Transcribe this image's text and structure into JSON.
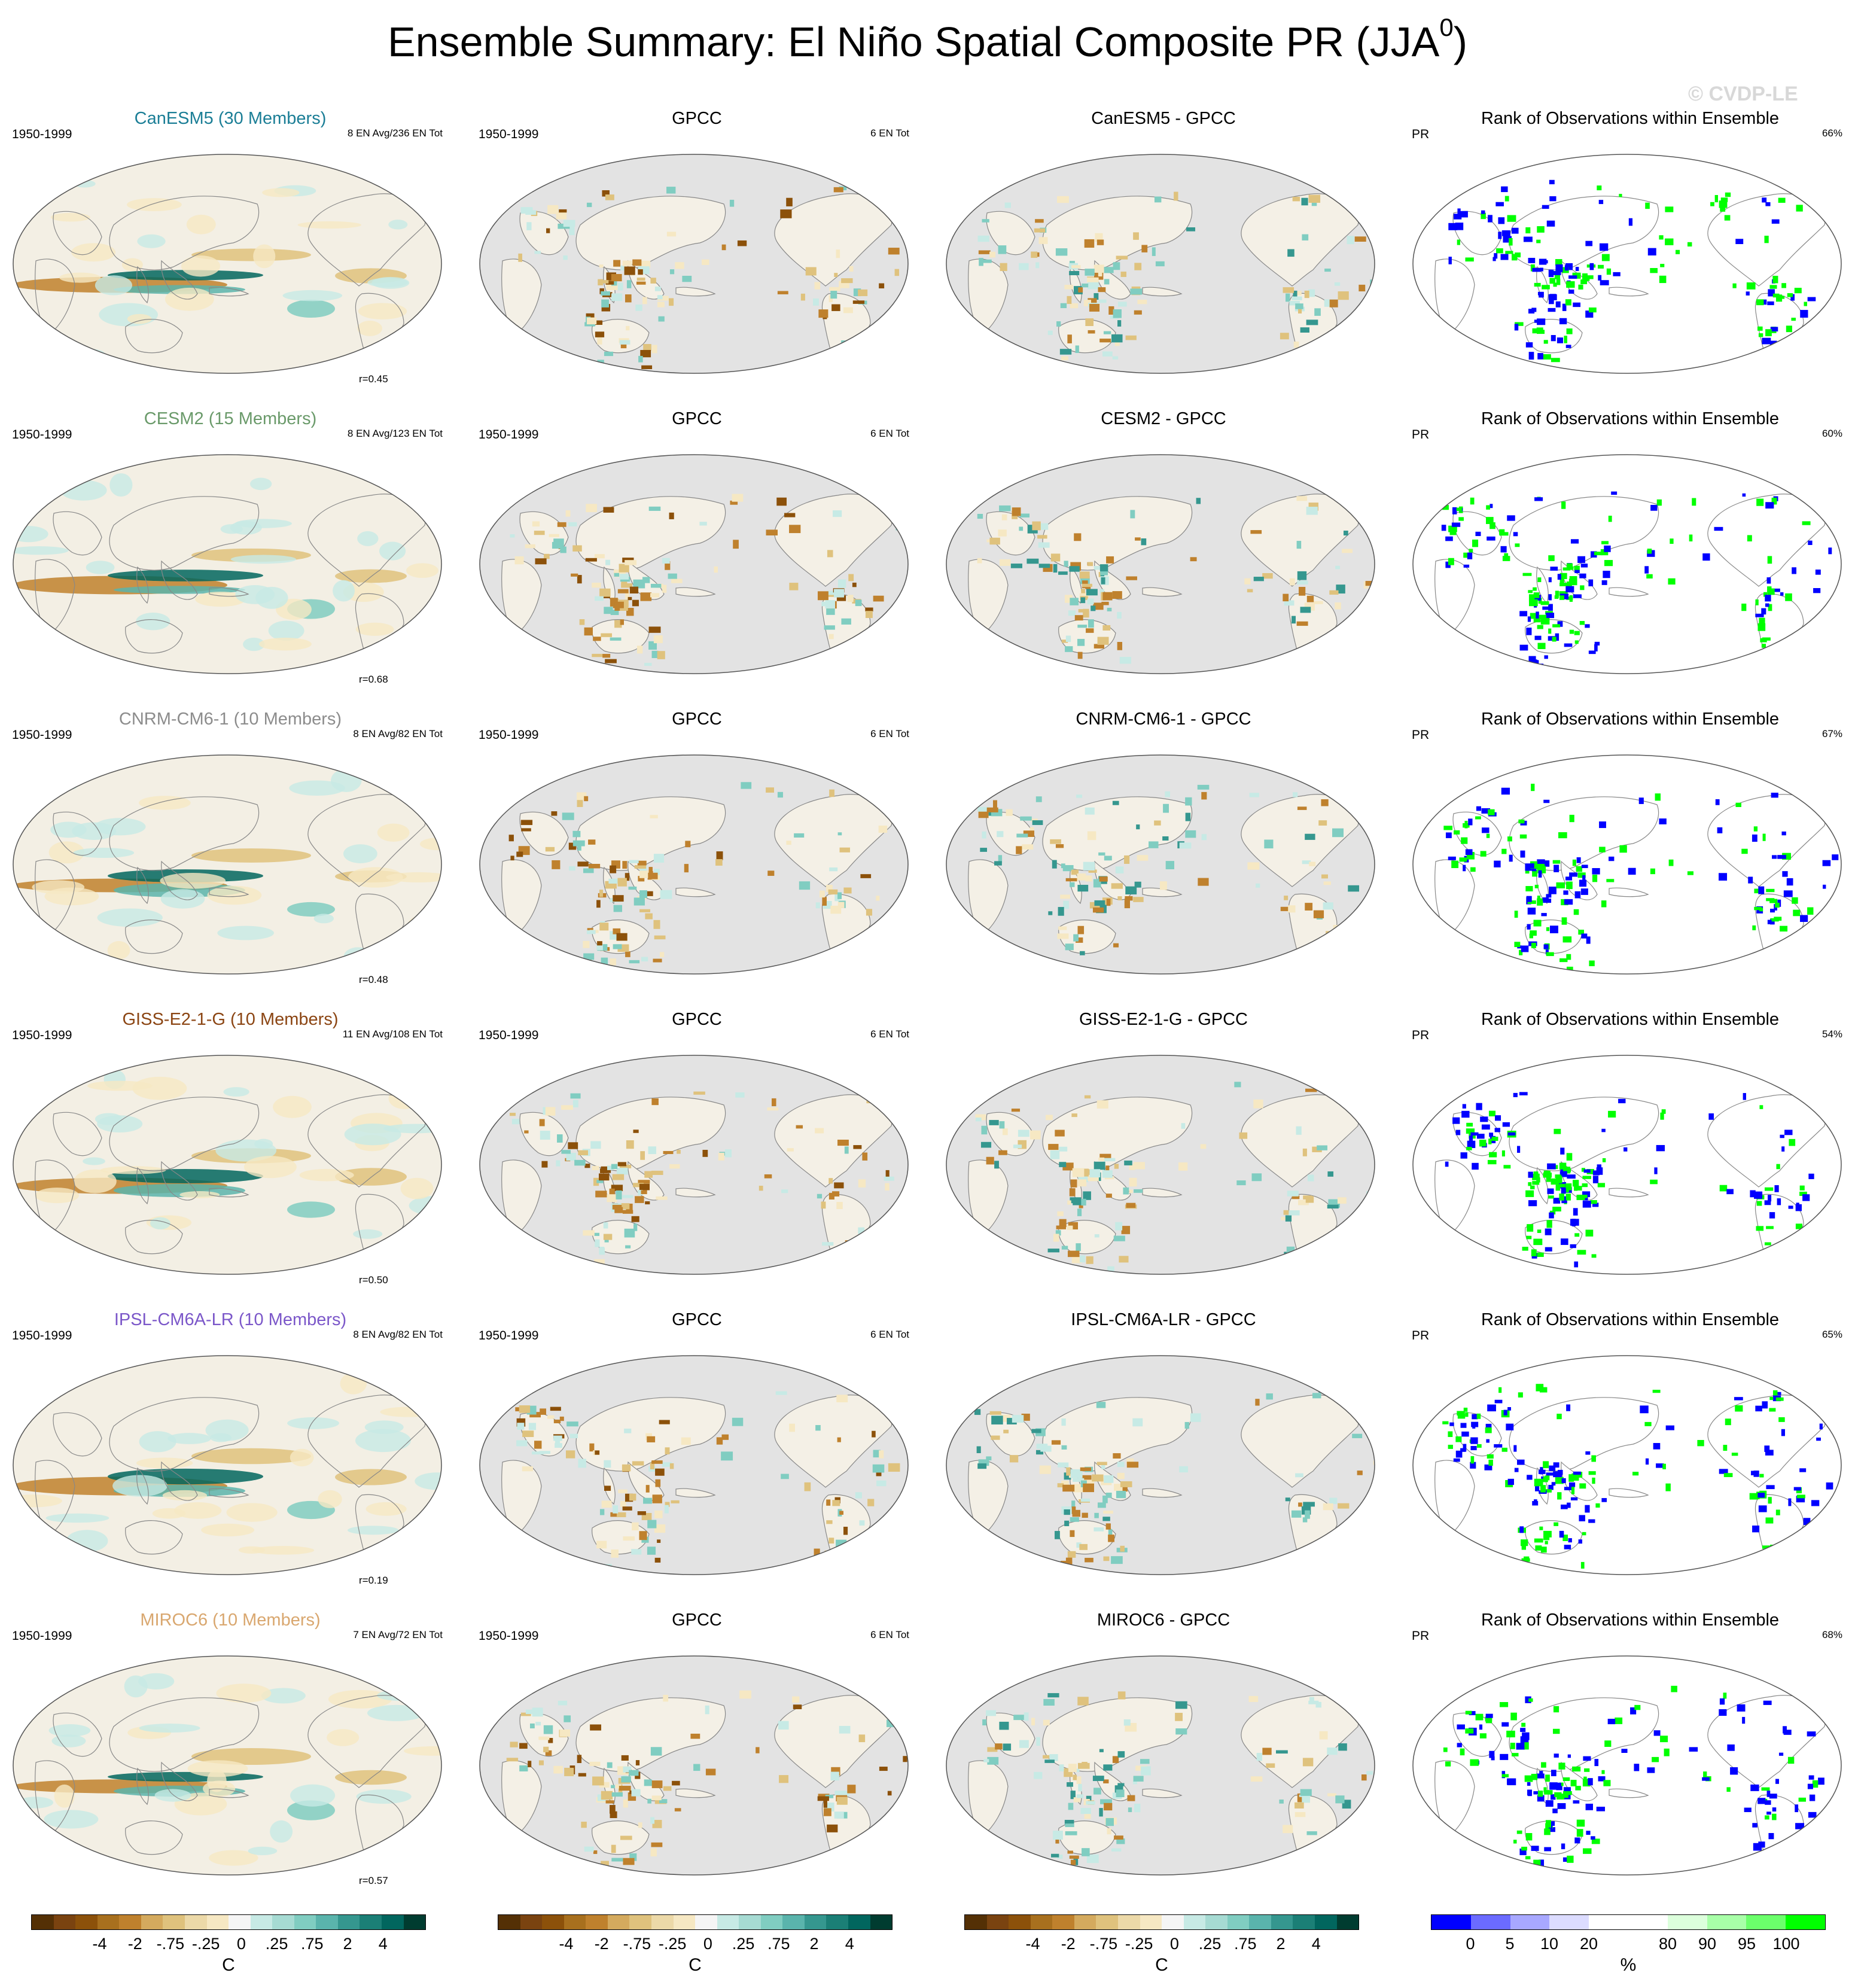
{
  "title": "Ensemble Summary: El Niño Spatial Composite PR (JJA",
  "title_superscript": "0",
  "title_close": ")",
  "watermark": "© CVDP-LE",
  "rows": [
    {
      "model_title": "CanESM5 (30 Members)",
      "model_color": "#1b7e96",
      "period": "1950-1999",
      "model_events": "8 EN Avg/236 EN Tot",
      "r": "r=0.45",
      "obs_title": "GPCC",
      "obs_period": "1950-1999",
      "obs_events": "6 EN Tot",
      "diff_title": "CanESM5 - GPCC",
      "rank_title": "Rank of Observations within Ensemble",
      "rank_var": "PR",
      "rank_pct": "66%"
    },
    {
      "model_title": "CESM2 (15 Members)",
      "model_color": "#6a9a6a",
      "period": "1950-1999",
      "model_events": "8 EN Avg/123 EN Tot",
      "r": "r=0.68",
      "obs_title": "GPCC",
      "obs_period": "1950-1999",
      "obs_events": "6 EN Tot",
      "diff_title": "CESM2 - GPCC",
      "rank_title": "Rank of Observations within Ensemble",
      "rank_var": "PR",
      "rank_pct": "60%"
    },
    {
      "model_title": "CNRM-CM6-1 (10 Members)",
      "model_color": "#8c8c8c",
      "period": "1950-1999",
      "model_events": "8 EN Avg/82 EN Tot",
      "r": "r=0.48",
      "obs_title": "GPCC",
      "obs_period": "1950-1999",
      "obs_events": "6 EN Tot",
      "diff_title": "CNRM-CM6-1 - GPCC",
      "rank_title": "Rank of Observations within Ensemble",
      "rank_var": "PR",
      "rank_pct": "67%"
    },
    {
      "model_title": "GISS-E2-1-G (10 Members)",
      "model_color": "#8b4513",
      "period": "1950-1999",
      "model_events": "11 EN Avg/108 EN Tot",
      "r": "r=0.50",
      "obs_title": "GPCC",
      "obs_period": "1950-1999",
      "obs_events": "6 EN Tot",
      "diff_title": "GISS-E2-1-G - GPCC",
      "rank_title": "Rank of Observations within Ensemble",
      "rank_var": "PR",
      "rank_pct": "54%"
    },
    {
      "model_title": "IPSL-CM6A-LR (10 Members)",
      "model_color": "#7b57c9",
      "period": "1950-1999",
      "model_events": "8 EN Avg/82 EN Tot",
      "r": "r=0.19",
      "obs_title": "GPCC",
      "obs_period": "1950-1999",
      "obs_events": "6 EN Tot",
      "diff_title": "IPSL-CM6A-LR - GPCC",
      "rank_title": "Rank of Observations within Ensemble",
      "rank_var": "PR",
      "rank_pct": "65%"
    },
    {
      "model_title": "MIROC6 (10 Members)",
      "model_color": "#d9a76f",
      "period": "1950-1999",
      "model_events": "7 EN Avg/72 EN Tot",
      "r": "r=0.57",
      "obs_title": "GPCC",
      "obs_period": "1950-1999",
      "obs_events": "6 EN Tot",
      "diff_title": "MIROC6 - GPCC",
      "rank_title": "Rank of Observations within Ensemble",
      "rank_var": "PR",
      "rank_pct": "68%"
    }
  ],
  "colorbars": [
    {
      "unit": "C",
      "ticks": [
        "-4",
        "-2",
        "-.75",
        "-.25",
        "0",
        ".25",
        ".75",
        "2",
        "4"
      ],
      "colors": [
        "#543005",
        "#7a4310",
        "#8c510a",
        "#a8701e",
        "#bf812d",
        "#d4aa5e",
        "#dfc27d",
        "#ecd9a8",
        "#f6e8c3",
        "#f5f5f5",
        "#c7eae5",
        "#a6dbd3",
        "#80cdc1",
        "#5ab4ac",
        "#35978f",
        "#1b7f76",
        "#01665e",
        "#003c30"
      ]
    },
    {
      "unit": "C",
      "ticks": [
        "-4",
        "-2",
        "-.75",
        "-.25",
        "0",
        ".25",
        ".75",
        "2",
        "4"
      ],
      "colors": [
        "#543005",
        "#7a4310",
        "#8c510a",
        "#a8701e",
        "#bf812d",
        "#d4aa5e",
        "#dfc27d",
        "#ecd9a8",
        "#f6e8c3",
        "#f5f5f5",
        "#c7eae5",
        "#a6dbd3",
        "#80cdc1",
        "#5ab4ac",
        "#35978f",
        "#1b7f76",
        "#01665e",
        "#003c30"
      ]
    },
    {
      "unit": "C",
      "ticks": [
        "-4",
        "-2",
        "-.75",
        "-.25",
        "0",
        ".25",
        ".75",
        "2",
        "4"
      ],
      "colors": [
        "#543005",
        "#7a4310",
        "#8c510a",
        "#a8701e",
        "#bf812d",
        "#d4aa5e",
        "#dfc27d",
        "#ecd9a8",
        "#f6e8c3",
        "#f5f5f5",
        "#c7eae5",
        "#a6dbd3",
        "#80cdc1",
        "#5ab4ac",
        "#35978f",
        "#1b7f76",
        "#01665e",
        "#003c30"
      ]
    },
    {
      "unit": "%",
      "ticks": [
        "0",
        "5",
        "10",
        "20",
        "80",
        "90",
        "95",
        "100"
      ],
      "colors": [
        "#0000ff",
        "#6b6bff",
        "#a8a8ff",
        "#dcdcff",
        "#ffffff",
        "#ffffff",
        "#dcffdc",
        "#a8ffa8",
        "#6bff6b",
        "#00ff00"
      ]
    }
  ],
  "colors": {
    "ocean_gray": "#e3e3e3",
    "land_blue": "#0000ff",
    "land_green": "#00ff00",
    "brown": "#a8701e",
    "teal": "#0f7b70"
  }
}
